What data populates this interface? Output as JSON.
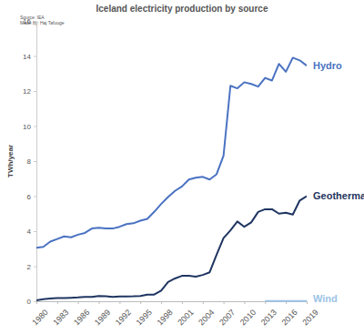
{
  "chart_data": {
    "type": "line",
    "title": "Iceland electricity production by source",
    "annotations": [
      "Source: IEA",
      "Made by: Haj Tafuuge"
    ],
    "y_label": "TWh/year",
    "x": [
      1980,
      1981,
      1982,
      1983,
      1984,
      1985,
      1986,
      1987,
      1988,
      1989,
      1990,
      1991,
      1992,
      1993,
      1994,
      1995,
      1996,
      1997,
      1998,
      1999,
      2000,
      2001,
      2002,
      2003,
      2004,
      2005,
      2006,
      2007,
      2008,
      2009,
      2010,
      2011,
      2012,
      2013,
      2014,
      2015,
      2016,
      2017,
      2018,
      2019
    ],
    "series": [
      {
        "name": "Hydro",
        "color": "#4a72c2",
        "values": [
          3.05,
          3.1,
          3.4,
          3.55,
          3.7,
          3.65,
          3.8,
          3.9,
          4.15,
          4.2,
          4.15,
          4.15,
          4.25,
          4.4,
          4.45,
          4.6,
          4.7,
          5.1,
          5.55,
          5.95,
          6.3,
          6.55,
          6.95,
          7.05,
          7.1,
          6.95,
          7.25,
          8.3,
          12.3,
          12.15,
          12.5,
          12.4,
          12.25,
          12.75,
          12.6,
          13.55,
          13.1,
          13.9,
          13.75,
          13.45
        ]
      },
      {
        "name": "Geothermal",
        "color": "#1f3561",
        "values": [
          0.05,
          0.12,
          0.15,
          0.18,
          0.18,
          0.2,
          0.22,
          0.25,
          0.25,
          0.3,
          0.28,
          0.25,
          0.27,
          0.27,
          0.28,
          0.3,
          0.38,
          0.38,
          0.6,
          1.1,
          1.3,
          1.45,
          1.45,
          1.4,
          1.5,
          1.65,
          2.65,
          3.6,
          4.05,
          4.55,
          4.25,
          4.5,
          5.1,
          5.25,
          5.25,
          5.0,
          5.05,
          4.95,
          5.75,
          6.0
        ]
      },
      {
        "name": "Wind",
        "color": "#9cc3e6",
        "values": [
          null,
          null,
          null,
          null,
          null,
          null,
          null,
          null,
          null,
          null,
          null,
          null,
          null,
          null,
          null,
          null,
          null,
          null,
          null,
          null,
          null,
          null,
          null,
          null,
          null,
          null,
          null,
          null,
          null,
          null,
          null,
          null,
          null,
          0.01,
          0.01,
          0.01,
          0.01,
          0.01,
          0.01,
          0.01
        ]
      }
    ],
    "xlim": [
      1980,
      2019
    ],
    "xticks": [
      1980,
      1983,
      1986,
      1989,
      1992,
      1995,
      1998,
      2001,
      2004,
      2007,
      2010,
      2013,
      2016,
      2019
    ],
    "ylim": [
      0,
      16
    ],
    "yticks": [
      0,
      2,
      4,
      6,
      8,
      10,
      12,
      14,
      16
    ],
    "grid": false
  }
}
